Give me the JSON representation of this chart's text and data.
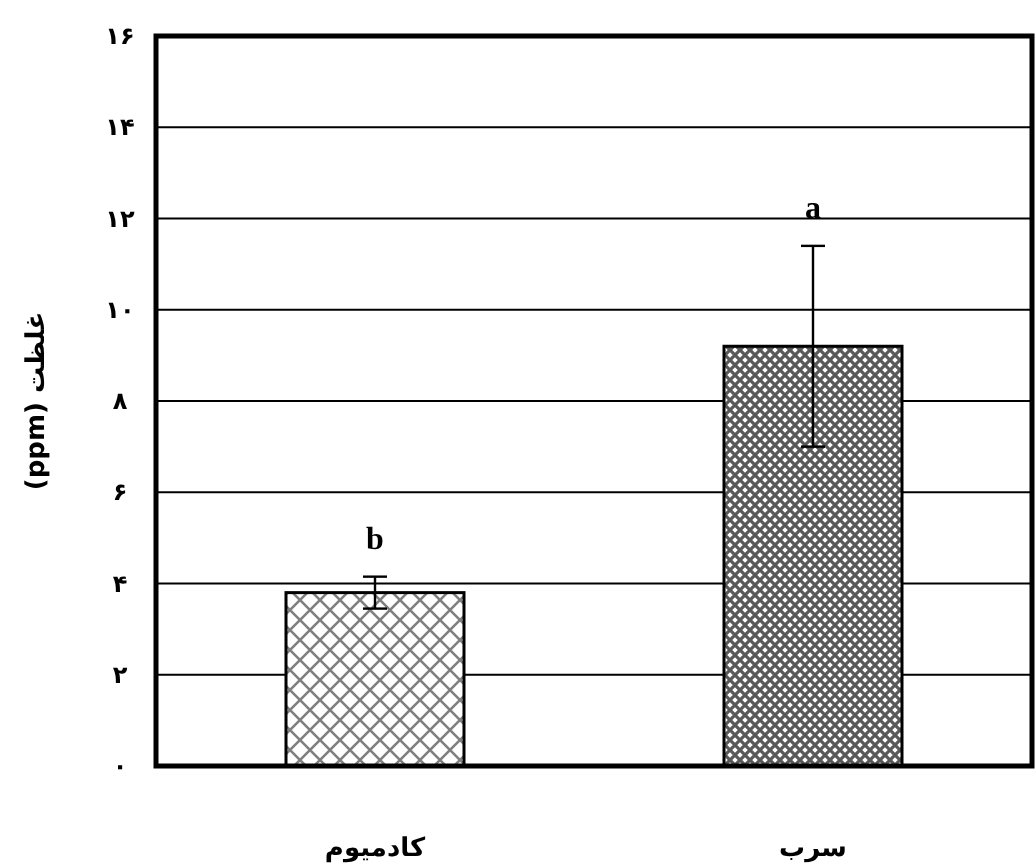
{
  "chart_data": {
    "type": "bar",
    "ylabel": "غلظت (ppm)",
    "categories": [
      "کادمیوم",
      "سرب"
    ],
    "values": [
      3.8,
      9.2
    ],
    "errors": [
      0.35,
      2.2
    ],
    "colors": [
      "#000000",
      "#000000"
    ],
    "ylim": [
      0,
      16
    ],
    "yticks": [
      {
        "value": 0,
        "label": "۰"
      },
      {
        "value": 2,
        "label": "۲"
      },
      {
        "value": 4,
        "label": "۴"
      },
      {
        "value": 6,
        "label": "۶"
      },
      {
        "value": 8,
        "label": "۸"
      },
      {
        "value": 10,
        "label": "۱۰"
      },
      {
        "value": 12,
        "label": "۱۲"
      },
      {
        "value": 14,
        "label": "۱۴"
      },
      {
        "value": 16,
        "label": "۱۶"
      }
    ],
    "grid": "y",
    "annotations": [
      "b",
      "a"
    ]
  }
}
